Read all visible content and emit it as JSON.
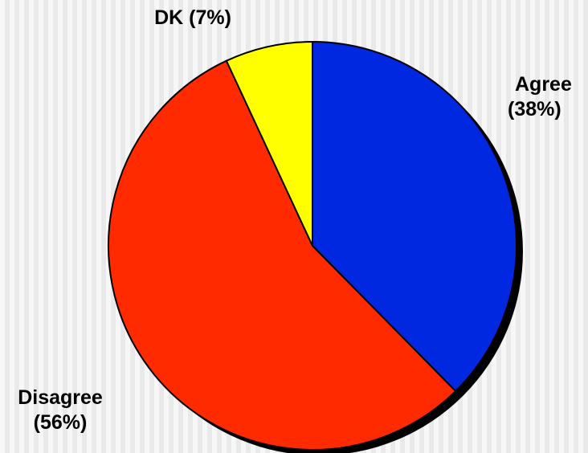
{
  "chart_data": {
    "type": "pie",
    "slices": [
      {
        "label": "Agree",
        "value": 38,
        "display": "(38%)",
        "color": "#0028e0"
      },
      {
        "label": "Disagree",
        "value": 56,
        "display": "(56%)",
        "color": "#ff2a00"
      },
      {
        "label": "DK",
        "value": 7,
        "display": "(7%)",
        "color": "#ffff00"
      }
    ],
    "start_angle_deg": 0,
    "direction": "clockwise",
    "legend": "none"
  }
}
